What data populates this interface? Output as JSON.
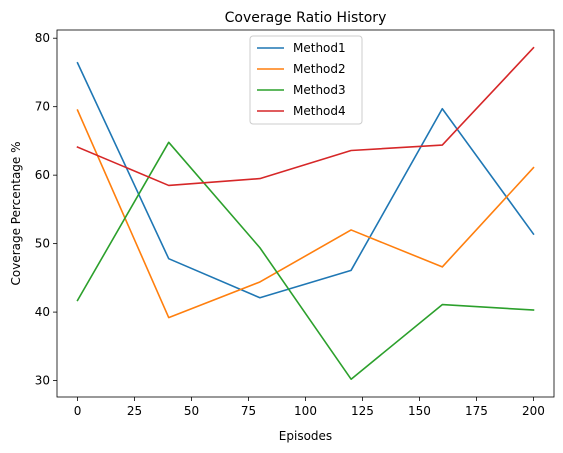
{
  "chart_data": {
    "type": "line",
    "title": "Coverage Ratio History",
    "xlabel": "Episodes",
    "ylabel": "Coverage Percentage %",
    "x": [
      0,
      40,
      80,
      120,
      160,
      200
    ],
    "xlim": [
      -9,
      209
    ],
    "ylim": [
      27.6,
      81.2
    ],
    "xticks": [
      0,
      25,
      50,
      75,
      100,
      125,
      150,
      175,
      200
    ],
    "yticks": [
      30,
      40,
      50,
      60,
      70,
      80
    ],
    "grid": false,
    "legend_position": "top-center",
    "series": [
      {
        "name": "Method1",
        "color": "#1f77b4",
        "values": [
          76.4,
          47.8,
          42.1,
          46.1,
          69.7,
          51.4
        ]
      },
      {
        "name": "Method2",
        "color": "#ff7f0e",
        "values": [
          69.5,
          39.2,
          44.4,
          52.0,
          46.6,
          61.1
        ]
      },
      {
        "name": "Method3",
        "color": "#2ca02c",
        "values": [
          41.7,
          64.8,
          49.4,
          30.2,
          41.1,
          40.3
        ]
      },
      {
        "name": "Method4",
        "color": "#d62728",
        "values": [
          64.1,
          58.5,
          59.5,
          63.6,
          64.4,
          78.6
        ]
      }
    ]
  }
}
